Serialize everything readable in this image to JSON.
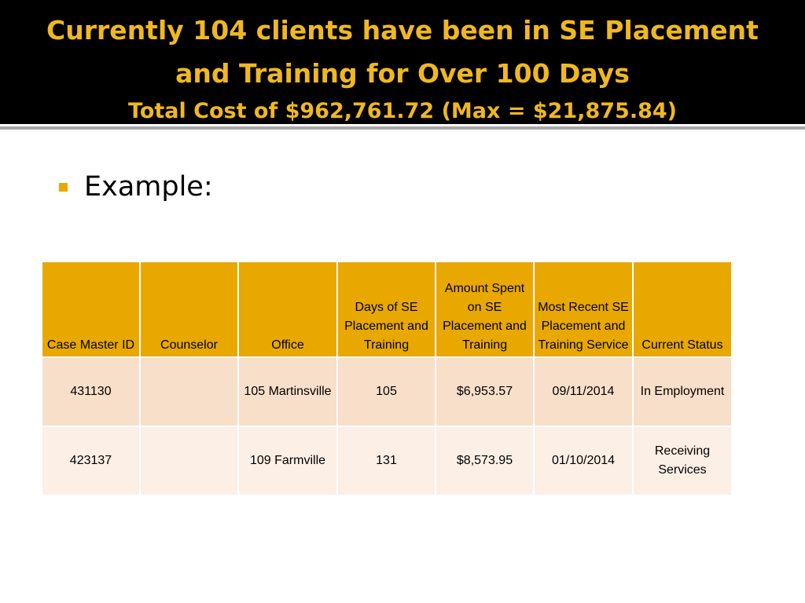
{
  "slide": {
    "title_line1": "Currently 104 clients have been in SE Placement",
    "title_line2": "and Training for Over 100 Days",
    "title_line3": "Total Cost of $962,761.72 (Max = $21,875.84)",
    "bullet": "Example:"
  },
  "colors": {
    "title_text": "#f0b820",
    "header_fill": "#e8a800",
    "row1_fill": "#f8dfc9",
    "row2_fill": "#fbefe6"
  },
  "table": {
    "headers": [
      "Case Master ID",
      "Counselor",
      "Office",
      "Days of SE Placement and Training",
      "Amount Spent on SE Placement and Training",
      "Most Recent SE Placement and Training Service",
      "Current Status"
    ],
    "rows": [
      [
        "431130",
        "",
        "105 Martinsville",
        "105",
        "$6,953.57",
        "09/11/2014",
        "In Employment"
      ],
      [
        "423137",
        "",
        "109 Farmville",
        "131",
        "$8,573.95",
        "01/10/2014",
        "Receiving Services"
      ]
    ]
  }
}
